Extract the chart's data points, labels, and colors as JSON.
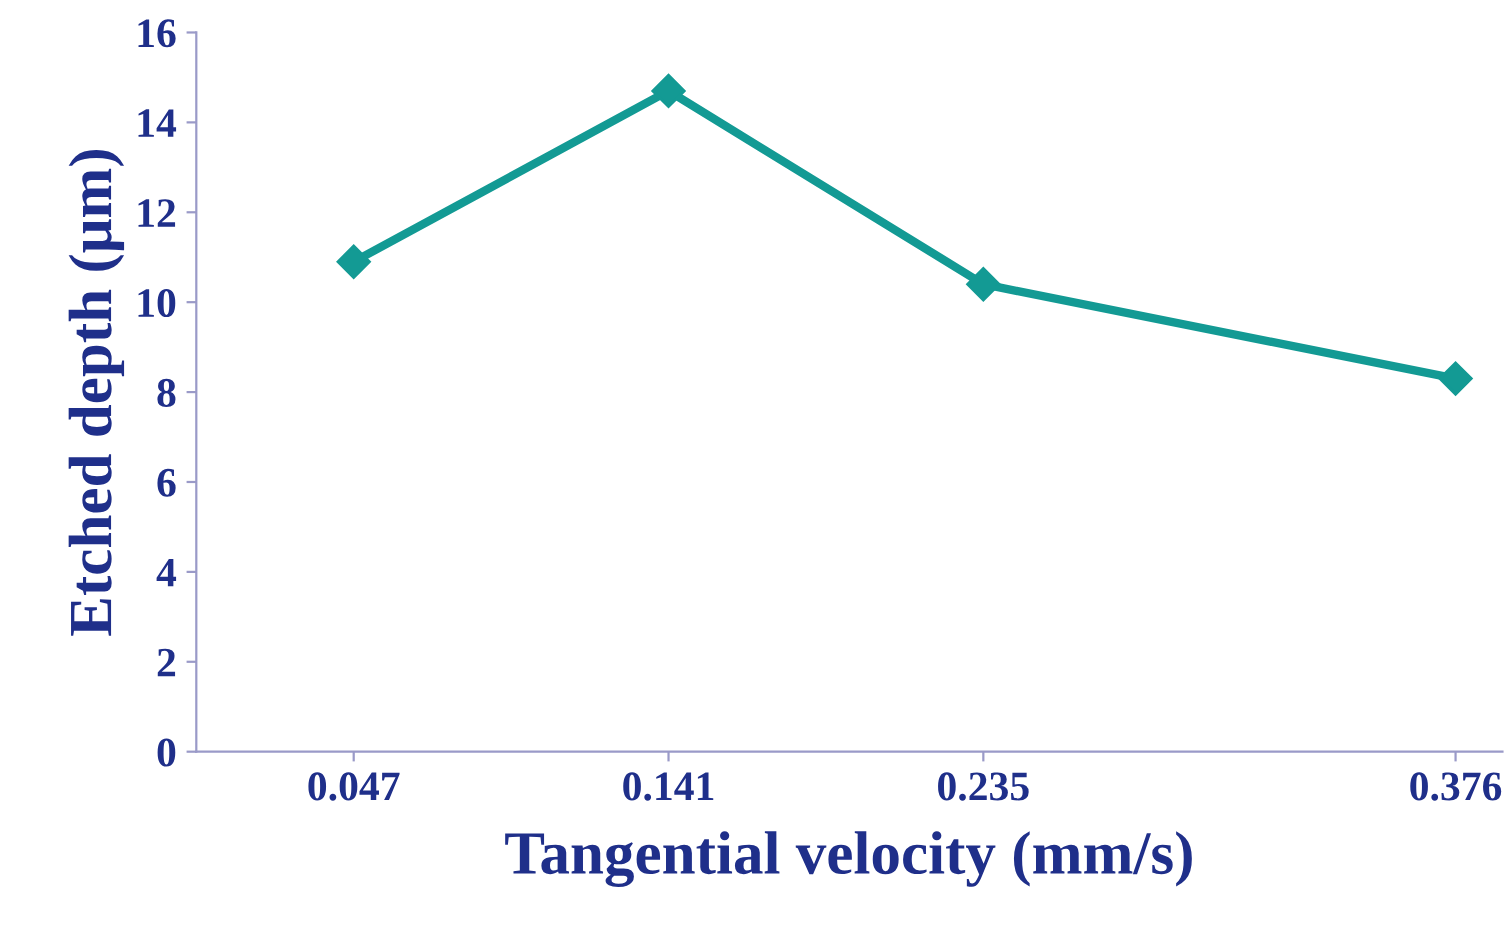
{
  "chart_data": {
    "type": "line",
    "xlabel": "Tangential velocity (mm/s)",
    "ylabel": "Etched depth (μm)",
    "x": [
      0.047,
      0.141,
      0.235,
      0.376
    ],
    "series": [
      {
        "color": "#139a94",
        "values": [
          10.9,
          14.7,
          10.4,
          8.3
        ]
      }
    ],
    "xlim": [
      0,
      0.39
    ],
    "xticks": [
      0.047,
      0.141,
      0.235,
      0.376
    ],
    "ylim": [
      0,
      16
    ],
    "yticks": [
      0,
      2,
      4,
      6,
      8,
      10,
      12,
      14,
      16
    ],
    "marker": "diamond",
    "line_style": "solid",
    "grid": false,
    "legend": false
  }
}
